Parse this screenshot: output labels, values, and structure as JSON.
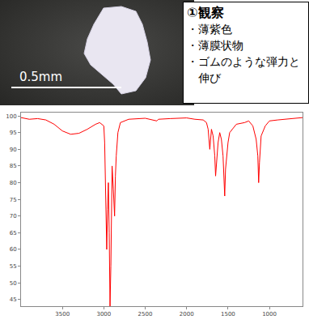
{
  "photo": {
    "scale_bar": "0.5mm"
  },
  "observation": {
    "heading": "①観察",
    "items": [
      "・薄紫色",
      "・薄膜状物",
      "・ゴムのような弾力と伸び"
    ]
  },
  "chart_data": {
    "type": "line",
    "color": "#ff0000",
    "grid": false,
    "x": [
      4000,
      3900,
      3800,
      3700,
      3600,
      3500,
      3400,
      3300,
      3200,
      3100,
      3050,
      3000,
      2990,
      2975,
      2965,
      2955,
      2945,
      2935,
      2925,
      2915,
      2900,
      2885,
      2870,
      2860,
      2850,
      2830,
      2800,
      2700,
      2500,
      2360,
      2340,
      2200,
      2000,
      1900,
      1800,
      1760,
      1740,
      1720,
      1710,
      1700,
      1680,
      1660,
      1650,
      1640,
      1620,
      1600,
      1580,
      1560,
      1550,
      1540,
      1530,
      1500,
      1480,
      1450,
      1400,
      1300,
      1250,
      1200,
      1160,
      1140,
      1130,
      1120,
      1100,
      1050,
      1000,
      900,
      800,
      700,
      600
    ],
    "values": [
      99.5,
      99,
      99.2,
      98.8,
      97.5,
      95.5,
      94.5,
      94.8,
      96,
      97.5,
      98,
      97,
      92,
      75,
      60,
      72,
      80,
      65,
      43,
      55,
      85,
      78,
      70,
      82,
      88,
      95,
      98,
      99,
      99.3,
      98.5,
      99,
      99.2,
      99.4,
      99,
      98.8,
      98,
      96,
      90,
      93,
      96,
      94,
      88,
      82,
      86,
      92,
      95,
      93,
      88,
      79,
      76,
      84,
      92,
      95,
      96,
      97.5,
      98,
      98.5,
      97,
      93,
      88,
      80,
      86,
      94,
      97,
      98.5,
      98.8,
      99,
      99.3,
      99.5
    ],
    "xlim": [
      4000,
      600
    ],
    "xticks": [
      3500,
      3000,
      2500,
      2000,
      1500,
      1000
    ],
    "ylim": [
      43,
      101
    ],
    "yticks": [
      45,
      50,
      55,
      60,
      65,
      70,
      75,
      80,
      85,
      90,
      95,
      100
    ]
  }
}
